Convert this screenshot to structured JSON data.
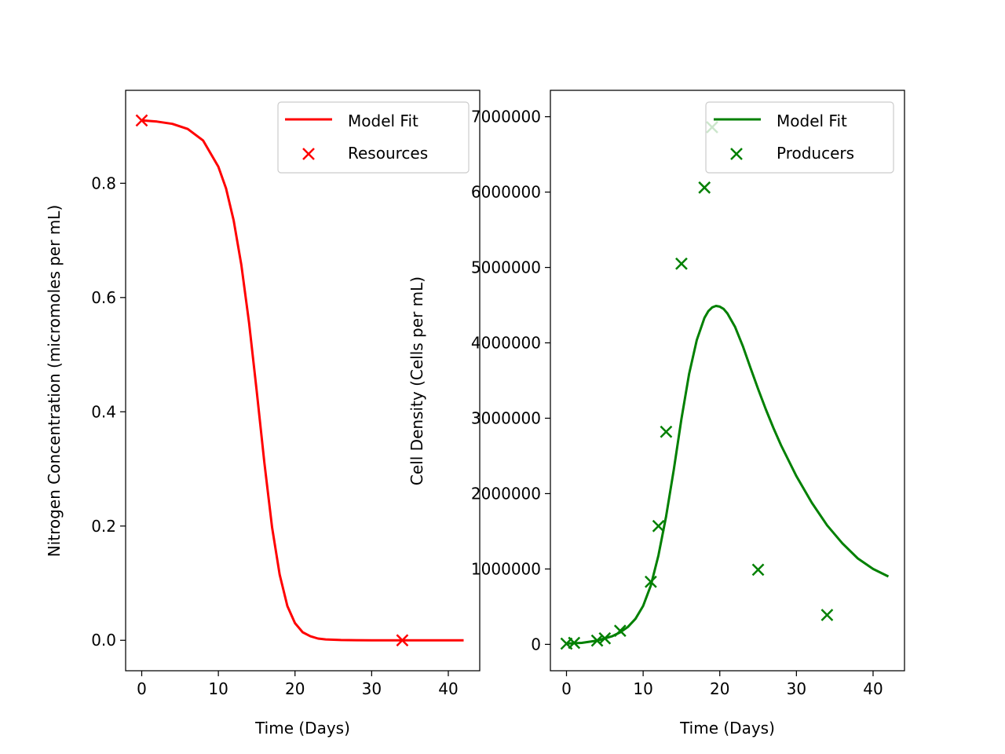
{
  "colors": {
    "red": "#ff0000",
    "green": "#008000",
    "axis": "#000000",
    "legend_border": "#cccccc"
  },
  "chart_data": [
    {
      "type": "line",
      "xlabel": "Time (Days)",
      "ylabel": "Nitrogen Concentration (micromoles per mL)",
      "xlim": [
        -2.1,
        44.1
      ],
      "ylim": [
        -0.0533,
        0.9627
      ],
      "xticks": [
        0,
        10,
        20,
        30,
        40
      ],
      "xtick_labels": [
        "0",
        "10",
        "20",
        "30",
        "40"
      ],
      "yticks": [
        0.0,
        0.2,
        0.4,
        0.6,
        0.8
      ],
      "ytick_labels": [
        "0.0",
        "0.2",
        "0.4",
        "0.6",
        "0.8"
      ],
      "grid": false,
      "legend_position": "top-right",
      "series": [
        {
          "name": "Model Fit",
          "kind": "line",
          "color": "#ff0000",
          "x": [
            0,
            2,
            4,
            6,
            8,
            10,
            11,
            12,
            13,
            14,
            15,
            16,
            17,
            18,
            19,
            20,
            21,
            22,
            23,
            24,
            26,
            28,
            30,
            34,
            38,
            42
          ],
          "y": [
            0.91,
            0.908,
            0.904,
            0.895,
            0.875,
            0.829,
            0.791,
            0.735,
            0.657,
            0.556,
            0.437,
            0.311,
            0.198,
            0.115,
            0.06,
            0.03,
            0.014,
            0.007,
            0.003,
            0.0015,
            0.0005,
            0.0002,
            0.0001,
            0.0,
            0.0,
            0.0
          ]
        },
        {
          "name": "Resources",
          "kind": "scatter",
          "marker": "x",
          "color": "#ff0000",
          "x": [
            0,
            34
          ],
          "y": [
            0.91,
            0.0
          ]
        }
      ]
    },
    {
      "type": "line",
      "xlabel": "Time (Days)",
      "ylabel": "Cell Density (Cells per mL)",
      "xlim": [
        -2.1,
        44.1
      ],
      "ylim": [
        -350000,
        7350000
      ],
      "xticks": [
        0,
        10,
        20,
        30,
        40
      ],
      "xtick_labels": [
        "0",
        "10",
        "20",
        "30",
        "40"
      ],
      "yticks": [
        0,
        1000000,
        2000000,
        3000000,
        4000000,
        5000000,
        6000000,
        7000000
      ],
      "ytick_labels": [
        "0",
        "1000000",
        "2000000",
        "3000000",
        "4000000",
        "5000000",
        "6000000",
        "7000000"
      ],
      "grid": false,
      "legend_position": "top-right",
      "series": [
        {
          "name": "Model Fit",
          "kind": "line",
          "color": "#008000",
          "x": [
            0,
            2,
            4,
            6,
            7,
            8,
            9,
            10,
            11,
            12,
            13,
            14,
            15,
            16,
            17,
            18,
            18.5,
            19,
            19.5,
            20,
            20.5,
            21,
            22,
            23,
            24,
            25,
            26,
            27,
            28,
            30,
            32,
            34,
            36,
            38,
            40,
            42
          ],
          "y": [
            10000,
            20000,
            50000,
            110000,
            160000,
            230000,
            340000,
            510000,
            780000,
            1180000,
            1700000,
            2320000,
            2990000,
            3590000,
            4040000,
            4330000,
            4420000,
            4470000,
            4490000,
            4480000,
            4450000,
            4390000,
            4210000,
            3960000,
            3670000,
            3390000,
            3120000,
            2870000,
            2640000,
            2230000,
            1880000,
            1580000,
            1340000,
            1140000,
            1000000,
            900000
          ]
        },
        {
          "name": "Producers",
          "kind": "scatter",
          "marker": "x",
          "color": "#008000",
          "x": [
            0,
            1,
            4,
            5,
            7,
            11,
            12,
            13,
            15,
            18,
            19,
            25,
            34
          ],
          "y": [
            10000,
            20000,
            50000,
            80000,
            180000,
            830000,
            1570000,
            2820000,
            5050000,
            6060000,
            6860000,
            990000,
            390000
          ]
        }
      ]
    }
  ]
}
